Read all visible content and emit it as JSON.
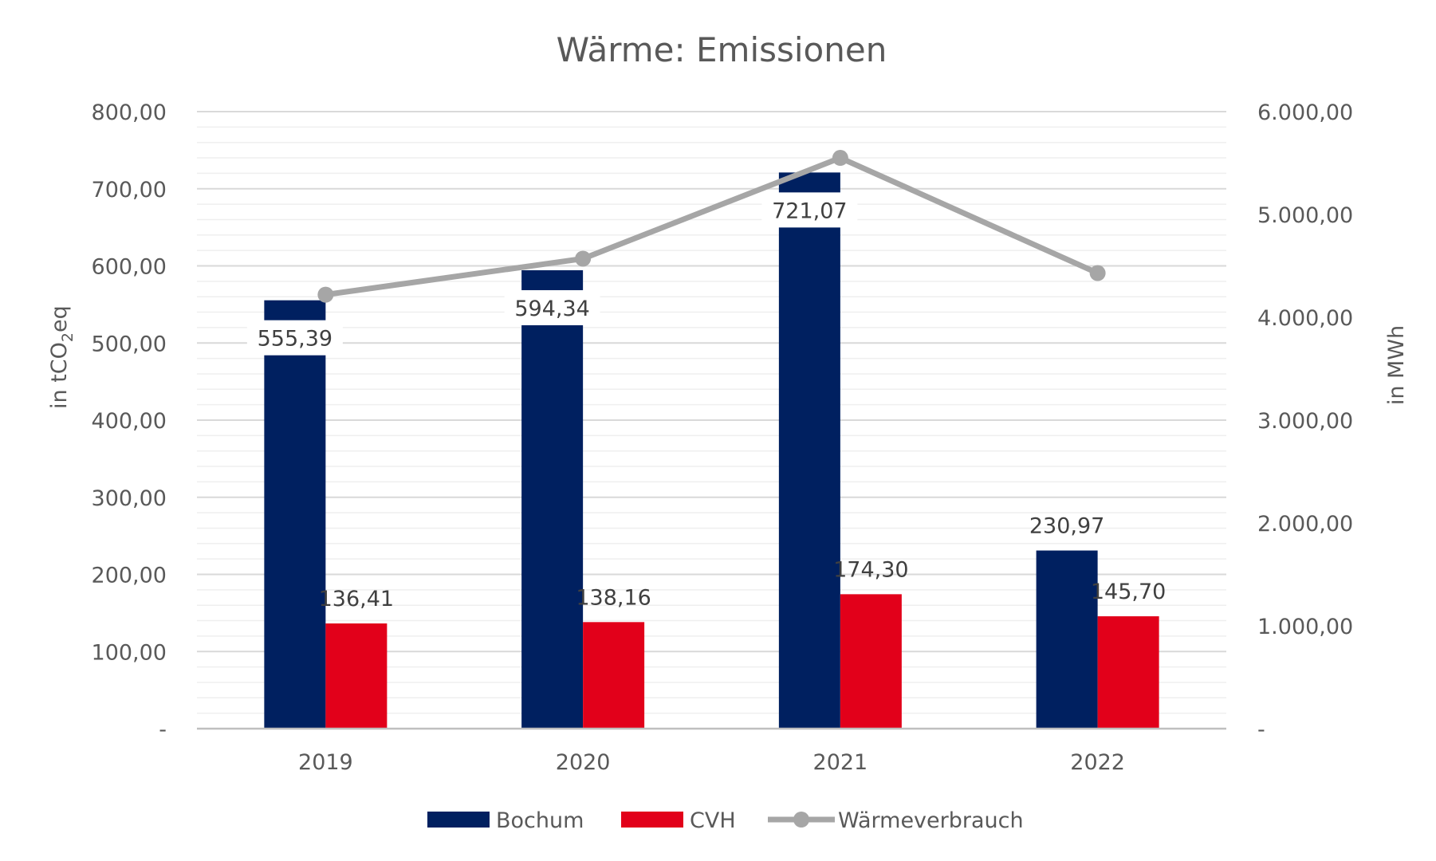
{
  "chart_data": {
    "type": "bar",
    "title": "Wärme: Emissionen",
    "categories": [
      "2019",
      "2020",
      "2021",
      "2022"
    ],
    "series": [
      {
        "name": "Bochum",
        "kind": "bar",
        "axis": "left",
        "color": "#002060",
        "values": [
          555.39,
          594.34,
          721.07,
          230.97
        ],
        "labels": [
          "555,39",
          "594,34",
          "721,07",
          "230,97"
        ]
      },
      {
        "name": "CVH",
        "kind": "bar",
        "axis": "left",
        "color": "#e2001a",
        "values": [
          136.41,
          138.16,
          174.3,
          145.7
        ],
        "labels": [
          "136,41",
          "138,16",
          "174,30",
          "145,70"
        ]
      },
      {
        "name": "Wärmeverbrauch",
        "kind": "line",
        "axis": "right",
        "color": "#a6a6a6",
        "values": [
          4220,
          4570,
          5550,
          4430
        ]
      }
    ],
    "y_left": {
      "label_main": "in tCO",
      "label_sub": "2",
      "label_end": "eq",
      "min": 0,
      "max": 800,
      "ticks": [
        0,
        100,
        200,
        300,
        400,
        500,
        600,
        700,
        800
      ],
      "tick_labels": [
        "-",
        "100,00",
        "200,00",
        "300,00",
        "400,00",
        "500,00",
        "600,00",
        "700,00",
        "800,00"
      ]
    },
    "y_right": {
      "label": "in MWh",
      "min": 0,
      "max": 6000,
      "ticks": [
        0,
        1000,
        2000,
        3000,
        4000,
        5000,
        6000
      ],
      "tick_labels": [
        "-",
        "1.000,00",
        "2.000,00",
        "3.000,00",
        "4.000,00",
        "5.000,00",
        "6.000,00"
      ]
    },
    "grid": true,
    "legend": "bottom"
  }
}
